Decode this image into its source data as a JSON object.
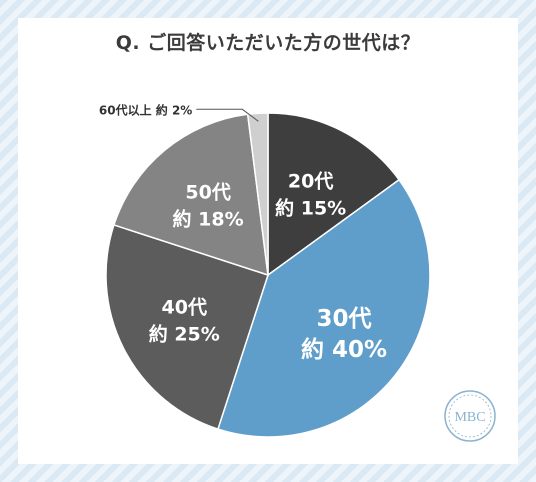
{
  "title": "Q. ご回答いただいた方の世代は？",
  "logo_text": "MBC",
  "chart_data": {
    "type": "pie",
    "title": "Q. ご回答いただいた方の世代は？",
    "slices": [
      {
        "label": "20代",
        "value_label": "約 15%",
        "value": 15,
        "color": "#3e3e3e"
      },
      {
        "label": "30代",
        "value_label": "約 40%",
        "value": 40,
        "color": "#5f9ecb"
      },
      {
        "label": "40代",
        "value_label": "約 25%",
        "value": 25,
        "color": "#5c5c5c"
      },
      {
        "label": "50代",
        "value_label": "約 18%",
        "value": 18,
        "color": "#848484"
      },
      {
        "label": "60代以上",
        "value_label": "約 2%",
        "value": 2,
        "color": "#cfcfcf",
        "callout": "60代以上 約 2%"
      }
    ]
  },
  "colors": {
    "background_stripe": "#dbe9f4",
    "title_underline": "#d3e6f4",
    "logo": "#8ab3cf"
  }
}
